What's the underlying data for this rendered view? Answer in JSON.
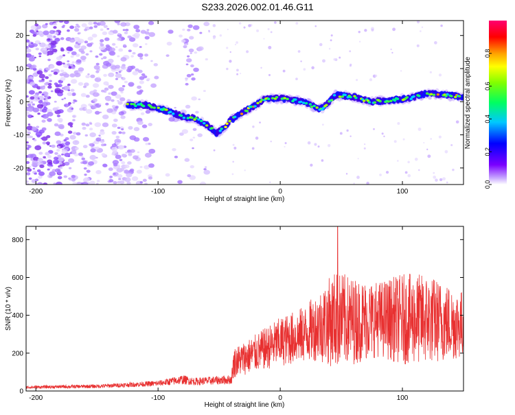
{
  "figure_title": "S233.2026.002.01.46.G11",
  "chart_data": [
    {
      "type": "heatmap",
      "title": "S233.2026.002.01.46.G11",
      "xlabel": "Height of straight line (km)",
      "ylabel": "Frequency (Hz)",
      "xlim": [
        -208,
        150
      ],
      "ylim": [
        -25,
        24.5
      ],
      "xticks": [
        -200,
        -100,
        0,
        100
      ],
      "yticks": [
        -20,
        -10,
        0,
        10,
        20
      ],
      "colorbar": {
        "label": "Normalized spectral amplitude",
        "range": [
          0,
          1
        ],
        "ticks": [
          "0.0",
          "0.2",
          "0.4",
          "0.6",
          "0.8"
        ]
      },
      "ridge": {
        "description": "dominant frequency trace (Hz) vs height (km)",
        "x": [
          -125,
          -110,
          -100,
          -90,
          -80,
          -70,
          -60,
          -52,
          -46,
          -42,
          -38,
          -30,
          -20,
          -12,
          -5,
          0,
          10,
          20,
          30,
          35,
          45,
          60,
          75,
          90,
          105,
          120,
          135,
          150
        ],
        "y": [
          -1,
          -1,
          -2,
          -3,
          -4.5,
          -5,
          -7,
          -9.5,
          -8,
          -6,
          -5,
          -3,
          -1,
          1,
          1,
          1,
          0.5,
          0,
          -2,
          -2,
          2,
          1.5,
          0,
          0.5,
          1,
          2.5,
          2,
          1.5
        ]
      },
      "noise_region": {
        "description": "broadband scattered energy",
        "x_range": [
          -208,
          -60
        ]
      }
    },
    {
      "type": "line",
      "xlabel": "Height of straight line (km)",
      "ylabel": "SNR (10 * v/v)",
      "xlim": [
        -208,
        150
      ],
      "ylim": [
        0,
        870
      ],
      "xticks": [
        -200,
        -100,
        0,
        100
      ],
      "yticks": [
        0,
        200,
        400,
        600,
        800
      ],
      "color": "#e83030",
      "envelope": {
        "x": [
          -208,
          -150,
          -100,
          -80,
          -70,
          -40,
          -38,
          -20,
          0,
          20,
          30,
          45,
          60,
          80,
          100,
          120,
          140,
          150
        ],
        "mean": [
          20,
          25,
          40,
          60,
          50,
          60,
          150,
          200,
          260,
          300,
          340,
          380,
          370,
          380,
          380,
          380,
          360,
          350
        ],
        "spread": [
          8,
          10,
          15,
          25,
          20,
          25,
          80,
          100,
          130,
          150,
          180,
          260,
          230,
          200,
          240,
          240,
          200,
          180
        ]
      },
      "peak": {
        "x": 47,
        "y": 870
      }
    }
  ]
}
